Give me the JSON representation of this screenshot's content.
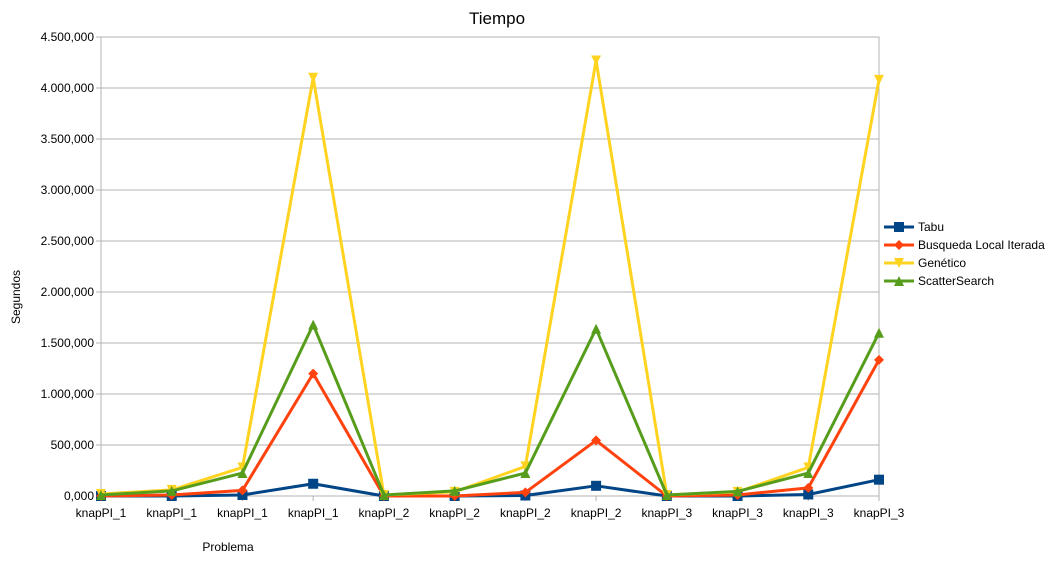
{
  "chart_data": {
    "type": "line",
    "title": "Tiempo",
    "xlabel": "Problema",
    "ylabel": "Segundos",
    "ylim": [
      0,
      4500
    ],
    "ytick_step": 500,
    "yticks": [
      "0,000",
      "500,000",
      "1.000,000",
      "1.500,000",
      "2.000,000",
      "2.500,000",
      "3.000,000",
      "3.500,000",
      "4.000,000",
      "4.500,000"
    ],
    "grid": true,
    "legend_position": "right",
    "categories": [
      "knapPI_1",
      "knapPI_1",
      "knapPI_1",
      "knapPI_1",
      "knapPI_2",
      "knapPI_2",
      "knapPI_2",
      "knapPI_2",
      "knapPI_3",
      "knapPI_3",
      "knapPI_3",
      "knapPI_3"
    ],
    "series": [
      {
        "name": "Tabu",
        "color": "#004586",
        "marker": "square",
        "values": [
          0,
          0,
          10,
          120,
          0,
          0,
          5,
          100,
          0,
          0,
          15,
          160
        ]
      },
      {
        "name": "Busqueda Local Iterada",
        "color": "#ff420e",
        "marker": "diamond",
        "values": [
          0,
          10,
          55,
          1200,
          0,
          0,
          35,
          545,
          0,
          10,
          80,
          1335
        ]
      },
      {
        "name": "Genético",
        "color": "#ffd320",
        "marker": "triangle-down",
        "values": [
          20,
          60,
          280,
          4100,
          10,
          40,
          290,
          4270,
          10,
          40,
          280,
          4080
        ]
      },
      {
        "name": "ScatterSearch",
        "color": "#579d1c",
        "marker": "triangle-up",
        "values": [
          10,
          50,
          225,
          1680,
          10,
          50,
          225,
          1640,
          10,
          45,
          225,
          1600
        ]
      }
    ]
  }
}
